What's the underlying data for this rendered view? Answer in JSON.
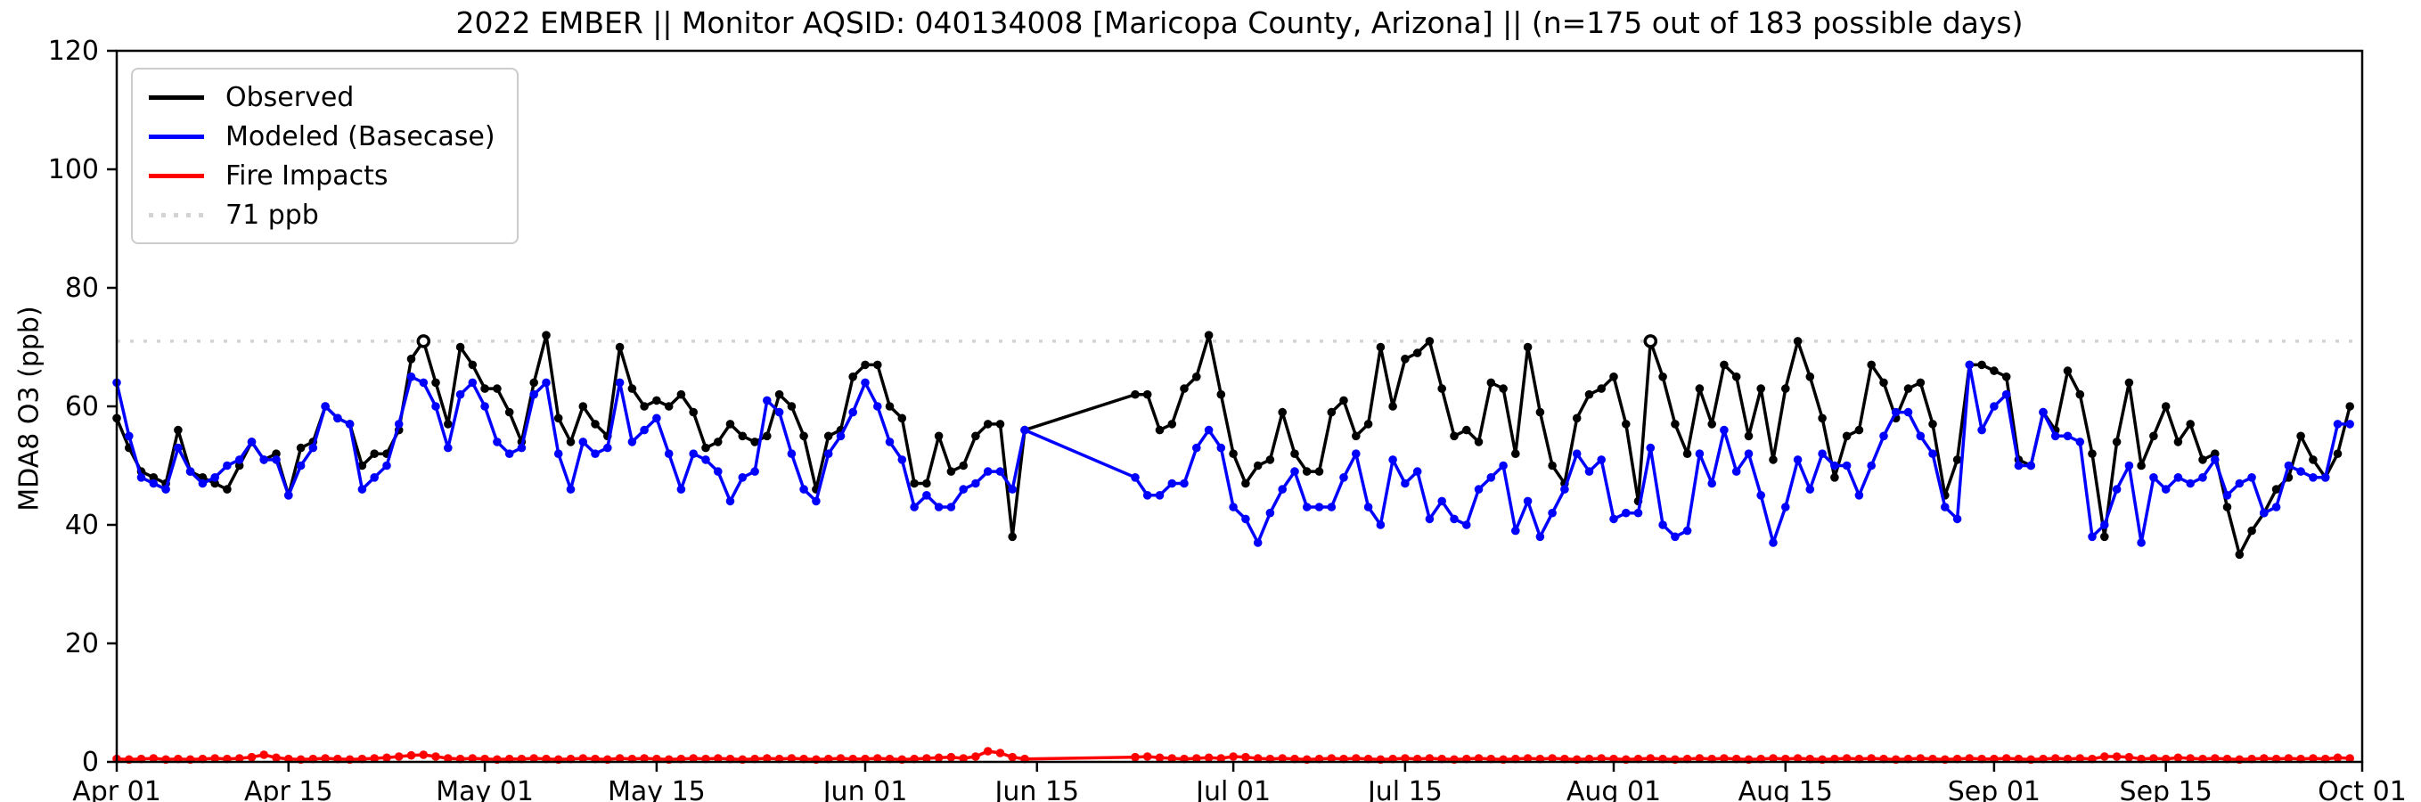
{
  "title": "2022 EMBER || Monitor AQSID: 040134008 [Maricopa County, Arizona] || (n=175 out of 183 possible days)",
  "ylabel": "MDA8 O3 (ppb)",
  "legend": [
    {
      "label": "Observed",
      "color": "#000000",
      "style": "solid"
    },
    {
      "label": "Modeled (Basecase)",
      "color": "#0000ff",
      "style": "solid"
    },
    {
      "label": "Fire Impacts",
      "color": "#ff0000",
      "style": "solid"
    },
    {
      "label": "71 ppb",
      "color": "#d3d3d3",
      "style": "dotted"
    }
  ],
  "chart_data": {
    "type": "line",
    "x_unit": "days from Apr 01 2022 (index 0) through Sep 30 2022 (index 182); Oct 01 = index 183",
    "x_range_days": 183,
    "xticks": [
      {
        "day": 0,
        "label": "Apr 01"
      },
      {
        "day": 14,
        "label": "Apr 15"
      },
      {
        "day": 30,
        "label": "May 01"
      },
      {
        "day": 44,
        "label": "May 15"
      },
      {
        "day": 61,
        "label": "Jun 01"
      },
      {
        "day": 75,
        "label": "Jun 15"
      },
      {
        "day": 91,
        "label": "Jul 01"
      },
      {
        "day": 105,
        "label": "Jul 15"
      },
      {
        "day": 122,
        "label": "Aug 01"
      },
      {
        "day": 136,
        "label": "Aug 15"
      },
      {
        "day": 153,
        "label": "Sep 01"
      },
      {
        "day": 167,
        "label": "Sep 15"
      },
      {
        "day": 183,
        "label": "Oct 01"
      }
    ],
    "ylim": [
      0,
      120
    ],
    "yticks": [
      0,
      20,
      40,
      60,
      80,
      100,
      120
    ],
    "grid": false,
    "legend_position": "upper left",
    "missing_days": "Jun 15 - Jun 22 (8 days, lines connect straight across gap)",
    "threshold": {
      "value": 71,
      "label": "71 ppb",
      "color": "#d3d3d3"
    },
    "series": [
      {
        "name": "Observed",
        "color": "#000000",
        "open_marker_days": [
          25,
          125
        ],
        "values": [
          58,
          53,
          49,
          48,
          47,
          56,
          49,
          48,
          47,
          46,
          50,
          54,
          51,
          52,
          45,
          53,
          54,
          60,
          58,
          57,
          50,
          52,
          52,
          56,
          68,
          71,
          64,
          57,
          70,
          67,
          63,
          63,
          59,
          54,
          64,
          72,
          58,
          54,
          60,
          57,
          55,
          70,
          63,
          60,
          61,
          60,
          62,
          59,
          53,
          54,
          57,
          55,
          54,
          55,
          62,
          60,
          55,
          46,
          55,
          56,
          65,
          67,
          67,
          60,
          58,
          47,
          47,
          55,
          49,
          50,
          55,
          57,
          57,
          38,
          56,
          null,
          null,
          null,
          null,
          null,
          null,
          null,
          null,
          62,
          62,
          56,
          57,
          63,
          65,
          72,
          62,
          52,
          47,
          50,
          51,
          59,
          52,
          49,
          49,
          59,
          61,
          55,
          57,
          70,
          60,
          68,
          69,
          71,
          63,
          55,
          56,
          54,
          64,
          63,
          52,
          70,
          59,
          50,
          47,
          58,
          62,
          63,
          65,
          57,
          44,
          71,
          65,
          57,
          52,
          63,
          57,
          67,
          65,
          55,
          63,
          51,
          63,
          71,
          65,
          58,
          48,
          55,
          56,
          67,
          64,
          58,
          63,
          64,
          57,
          45,
          51,
          67,
          67,
          66,
          65,
          51,
          50,
          59,
          56,
          66,
          62,
          52,
          38,
          54,
          64,
          50,
          55,
          60,
          54,
          57,
          51,
          52,
          43,
          35,
          39,
          42,
          46,
          48,
          55,
          51,
          48,
          52,
          60
        ]
      },
      {
        "name": "Modeled (Basecase)",
        "color": "#0000ff",
        "open_marker_days": [],
        "values": [
          64,
          55,
          48,
          47,
          46,
          53,
          49,
          47,
          48,
          50,
          51,
          54,
          51,
          51,
          45,
          50,
          53,
          60,
          58,
          57,
          46,
          48,
          50,
          57,
          65,
          64,
          60,
          53,
          62,
          64,
          60,
          54,
          52,
          53,
          62,
          64,
          52,
          46,
          54,
          52,
          53,
          64,
          54,
          56,
          58,
          52,
          46,
          52,
          51,
          49,
          44,
          48,
          49,
          61,
          59,
          52,
          46,
          44,
          52,
          55,
          59,
          64,
          60,
          54,
          51,
          43,
          45,
          43,
          43,
          46,
          47,
          49,
          49,
          46,
          56,
          null,
          null,
          null,
          null,
          null,
          null,
          null,
          null,
          48,
          45,
          45,
          47,
          47,
          53,
          56,
          53,
          43,
          41,
          37,
          42,
          46,
          49,
          43,
          43,
          43,
          48,
          52,
          43,
          40,
          51,
          47,
          49,
          41,
          44,
          41,
          40,
          46,
          48,
          50,
          39,
          44,
          38,
          42,
          46,
          52,
          49,
          51,
          41,
          42,
          42,
          53,
          40,
          38,
          39,
          52,
          47,
          56,
          49,
          52,
          45,
          37,
          43,
          51,
          46,
          52,
          50,
          50,
          45,
          50,
          55,
          59,
          59,
          55,
          52,
          43,
          41,
          67,
          56,
          60,
          62,
          50,
          50,
          59,
          55,
          55,
          54,
          38,
          40,
          46,
          50,
          37,
          48,
          46,
          48,
          47,
          48,
          51,
          45,
          47,
          48,
          42,
          43,
          50,
          49,
          48,
          48,
          57,
          57
        ]
      },
      {
        "name": "Fire Impacts",
        "color": "#ff0000",
        "open_marker_days": [],
        "values": [
          0.5,
          0.4,
          0.5,
          0.6,
          0.4,
          0.5,
          0.4,
          0.5,
          0.6,
          0.5,
          0.6,
          0.8,
          1.2,
          0.7,
          0.5,
          0.4,
          0.5,
          0.6,
          0.5,
          0.4,
          0.5,
          0.6,
          0.7,
          0.9,
          1.1,
          1.2,
          0.9,
          0.6,
          0.5,
          0.6,
          0.5,
          0.4,
          0.5,
          0.5,
          0.6,
          0.5,
          0.4,
          0.5,
          0.6,
          0.5,
          0.4,
          0.6,
          0.5,
          0.6,
          0.5,
          0.4,
          0.5,
          0.6,
          0.5,
          0.6,
          0.5,
          0.4,
          0.5,
          0.6,
          0.5,
          0.6,
          0.5,
          0.4,
          0.5,
          0.6,
          0.5,
          0.5,
          0.6,
          0.5,
          0.4,
          0.5,
          0.6,
          0.7,
          0.8,
          0.6,
          0.9,
          1.8,
          1.5,
          0.8,
          0.5,
          null,
          null,
          null,
          null,
          null,
          null,
          null,
          null,
          0.8,
          0.9,
          0.7,
          0.6,
          0.5,
          0.6,
          0.7,
          0.6,
          0.9,
          0.8,
          0.6,
          0.5,
          0.6,
          0.5,
          0.4,
          0.5,
          0.6,
          0.5,
          0.6,
          0.5,
          0.4,
          0.5,
          0.6,
          0.5,
          0.6,
          0.5,
          0.4,
          0.5,
          0.6,
          0.5,
          0.4,
          0.5,
          0.6,
          0.5,
          0.6,
          0.5,
          0.4,
          0.5,
          0.6,
          0.5,
          0.4,
          0.5,
          0.6,
          0.5,
          0.4,
          0.5,
          0.6,
          0.5,
          0.6,
          0.5,
          0.4,
          0.5,
          0.6,
          0.5,
          0.6,
          0.5,
          0.4,
          0.5,
          0.6,
          0.5,
          0.6,
          0.5,
          0.4,
          0.5,
          0.6,
          0.5,
          0.4,
          0.5,
          0.6,
          0.5,
          0.5,
          0.6,
          0.5,
          0.4,
          0.5,
          0.6,
          0.5,
          0.6,
          0.5,
          0.9,
          0.9,
          0.8,
          0.5,
          0.6,
          0.5,
          0.7,
          0.6,
          0.5,
          0.6,
          0.5,
          0.4,
          0.5,
          0.6,
          0.5,
          0.6,
          0.5,
          0.6,
          0.5,
          0.7,
          0.6
        ]
      }
    ]
  }
}
